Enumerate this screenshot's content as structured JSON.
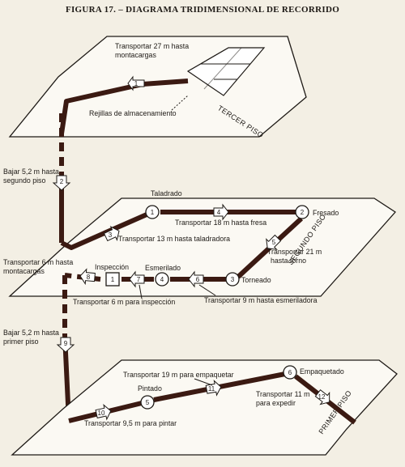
{
  "figure_title": "FIGURA 17. – DIAGRAMA TRIDIMENSIONAL DE RECORRIDO",
  "floors": {
    "third": "TERCER PISO",
    "second": "SEGUNDO PISO",
    "first": "PRIMER PISO"
  },
  "labels": {
    "transport_27": [
      "Transportar 27 m hasta",
      "montacargas"
    ],
    "racks": "Rejillas de almacenamiento",
    "down_1": [
      "Bajar 5,2 m hasta",
      "segundo piso"
    ],
    "taladrado": "Taladrado",
    "transport_18": "Transportar 18 m hasta fresa",
    "fresado": "Fresado",
    "transport_13": "Transportar 13 m hasta taladradora",
    "transport_21": [
      "Transportar 21 m",
      "hasta torno"
    ],
    "transport_6_mont": [
      "Transportar 6 m hasta",
      "montacargas"
    ],
    "inspeccion": "Inspección",
    "esmerilado": "Esmerilado",
    "torneado": "Torneado",
    "transport_6_insp": "Transportar 6 m para inspección",
    "transport_9": "Transportar 9 m hasta esmeriladora",
    "down_2": [
      "Bajar 5,2 m hasta",
      "primer piso"
    ],
    "transport_19": "Transportar 19 m para empaquetar",
    "pintado": "Pintado",
    "empaquetado": "Empaquetado",
    "transport_11": [
      "Transportar 11 m",
      "para expedir"
    ],
    "transport_9_5": "Transportar 9,5 m para pintar"
  },
  "operations": [
    "1",
    "2",
    "3",
    "4",
    "5",
    "6"
  ],
  "inspection_symbol": "1",
  "transport_steps": [
    "1",
    "2",
    "3",
    "4",
    "5",
    "6",
    "7",
    "8",
    "9",
    "10",
    "11",
    "12"
  ]
}
